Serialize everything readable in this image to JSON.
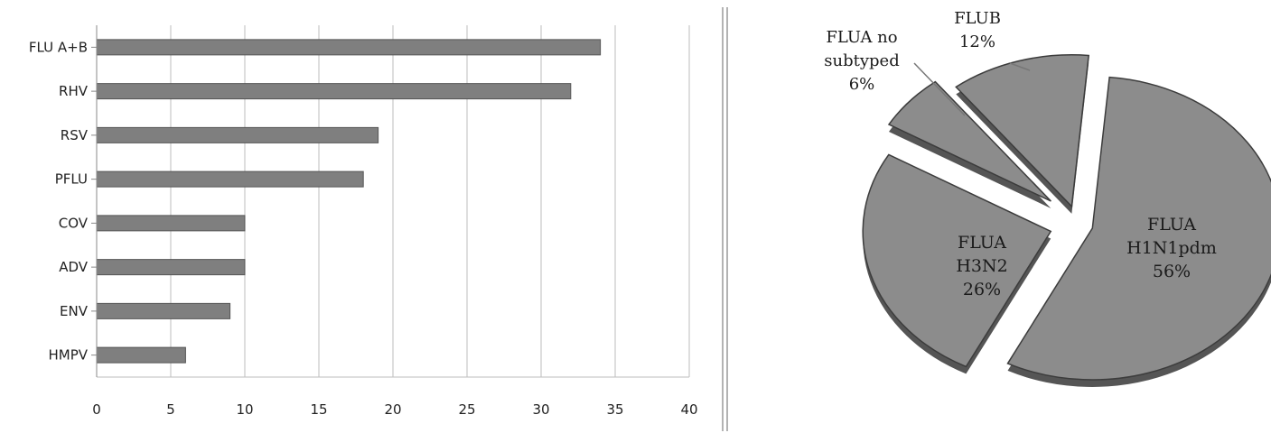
{
  "chart_data": [
    {
      "type": "bar",
      "orientation": "horizontal",
      "categories": [
        "FLU A+B",
        "RHV",
        "RSV",
        "PFLU",
        "COV",
        "ADV",
        "ENV",
        "HMPV"
      ],
      "values": [
        34,
        32,
        19,
        18,
        10,
        10,
        9,
        6
      ],
      "xlim": [
        0,
        40
      ],
      "xticks": [
        "0",
        "5",
        "10",
        "15",
        "20",
        "25",
        "30",
        "35",
        "40"
      ],
      "grid": "vertical",
      "bar_color": "#7f7f7f"
    },
    {
      "type": "pie",
      "exploded": true,
      "slices": [
        {
          "label_lines": [
            "FLUA",
            "H1N1pdm",
            "56%"
          ],
          "value": 56
        },
        {
          "label_lines": [
            "FLUA",
            "H3N2",
            "26%"
          ],
          "value": 26
        },
        {
          "label_lines": [
            "FLUA no",
            "subtyped",
            "6%"
          ],
          "value": 6
        },
        {
          "label_lines": [
            "FLUB",
            "12%"
          ],
          "value": 12
        }
      ],
      "slice_color": "#8c8c8c"
    }
  ]
}
